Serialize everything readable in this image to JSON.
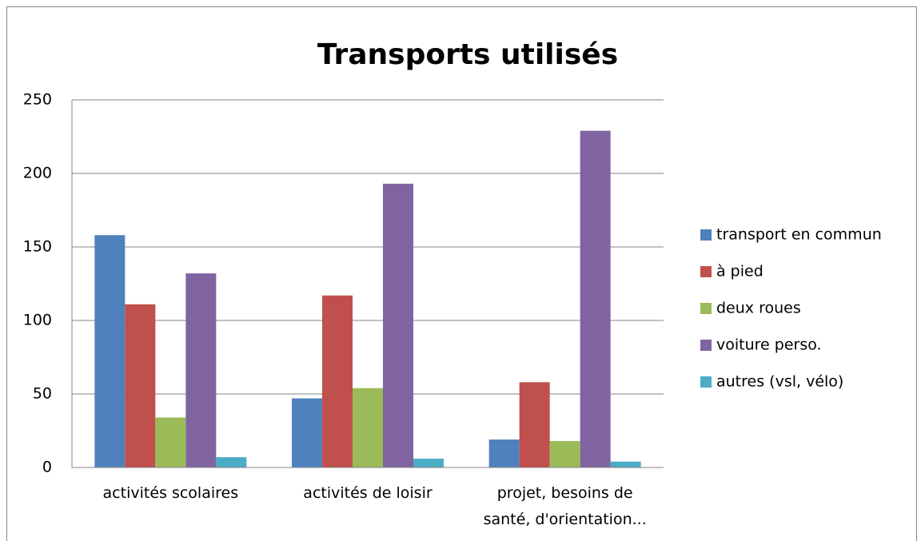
{
  "chart_data": {
    "type": "bar",
    "title": "Transports utilisés",
    "categories": [
      "activités scolaires",
      "activités de loisir",
      "projet, besoins de santé, d'orientation..."
    ],
    "series": [
      {
        "name": "transport en commun",
        "color": "#4f81bd",
        "values": [
          158,
          47,
          19
        ]
      },
      {
        "name": "à pied",
        "color": "#c0504d",
        "values": [
          111,
          117,
          58
        ]
      },
      {
        "name": "deux roues",
        "color": "#9bbb59",
        "values": [
          34,
          54,
          18
        ]
      },
      {
        "name": "voiture perso.",
        "color": "#8064a2",
        "values": [
          132,
          193,
          229
        ]
      },
      {
        "name": "autres (vsl, vélo)",
        "color": "#4bacc6",
        "values": [
          7,
          6,
          4
        ]
      }
    ],
    "ylim": [
      0,
      250
    ],
    "yticks": [
      0,
      50,
      100,
      150,
      200,
      250
    ],
    "grid": true,
    "legend": "right"
  }
}
